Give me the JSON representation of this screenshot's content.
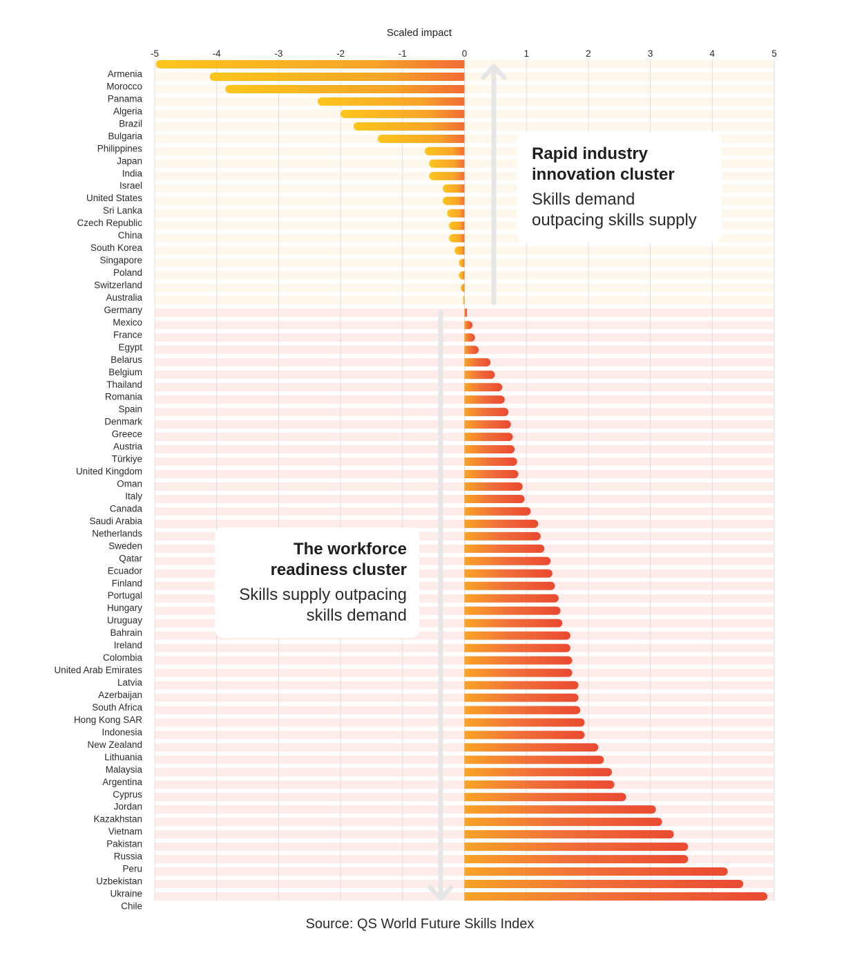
{
  "chart_data": {
    "type": "bar",
    "orientation": "horizontal",
    "title": "",
    "xlabel": "Scaled impact",
    "ylabel": "",
    "xlim": [
      -5,
      5
    ],
    "xticks": [
      -5,
      -4,
      -3,
      -2,
      -1,
      0,
      1,
      2,
      3,
      4,
      5
    ],
    "grid": true,
    "categories": [
      "Armenia",
      "Morocco",
      "Panama",
      "Algeria",
      "Brazil",
      "Bulgaria",
      "Philippines",
      "Japan",
      "India",
      "Israel",
      "United States",
      "Sri Lanka",
      "Czech Republic",
      "China",
      "South Korea",
      "Singapore",
      "Poland",
      "Switzerland",
      "Australia",
      "Germany",
      "Mexico",
      "France",
      "Egypt",
      "Belarus",
      "Belgium",
      "Thailand",
      "Romania",
      "Spain",
      "Denmark",
      "Greece",
      "Austria",
      "Türkiye",
      "United Kingdom",
      "Oman",
      "Italy",
      "Canada",
      "Saudi Arabia",
      "Netherlands",
      "Sweden",
      "Qatar",
      "Ecuador",
      "Finland",
      "Portugal",
      "Hungary",
      "Uruguay",
      "Bahrain",
      "Ireland",
      "Colombia",
      "United Arab Emirates",
      "Latvia",
      "Azerbaijan",
      "South Africa",
      "Hong Kong SAR",
      "Indonesia",
      "New Zealand",
      "Lithuania",
      "Malaysia",
      "Argentina",
      "Cyprus",
      "Jordan",
      "Kazakhstan",
      "Vietnam",
      "Pakistan",
      "Russia",
      "Peru",
      "Uzbekistan",
      "Ukraine",
      "Chile"
    ],
    "values": [
      -4.98,
      -4.11,
      -3.86,
      -2.37,
      -2.0,
      -1.79,
      -1.4,
      -0.64,
      -0.57,
      -0.57,
      -0.35,
      -0.35,
      -0.28,
      -0.25,
      -0.25,
      -0.16,
      -0.09,
      -0.09,
      -0.06,
      -0.02,
      0.04,
      0.13,
      0.17,
      0.23,
      0.42,
      0.49,
      0.61,
      0.65,
      0.71,
      0.75,
      0.78,
      0.81,
      0.85,
      0.87,
      0.94,
      0.97,
      1.07,
      1.19,
      1.23,
      1.29,
      1.39,
      1.42,
      1.46,
      1.52,
      1.55,
      1.58,
      1.71,
      1.71,
      1.74,
      1.74,
      1.84,
      1.84,
      1.87,
      1.94,
      1.94,
      2.16,
      2.25,
      2.38,
      2.42,
      2.61,
      3.09,
      3.19,
      3.38,
      3.61,
      3.61,
      4.25,
      4.5,
      4.89
    ],
    "colors": {
      "negative_gradient": [
        "#fdc51c",
        "#f7a428",
        "#f26c35"
      ],
      "positive_gradient": [
        "#f9a326",
        "#f0693a",
        "#ea4a31"
      ],
      "band_top": "#fef8ec",
      "band_bottom": "#fdecea",
      "gridline": "#dedede",
      "arrow": "#e6e6e6"
    },
    "annotations": [
      {
        "title": "Rapid industry innovation cluster",
        "text": "Skills demand outpacing skills supply",
        "direction": "up"
      },
      {
        "title": "The workforce readiness cluster",
        "text": "Skills supply outpacing skills demand",
        "direction": "down"
      }
    ],
    "source": "Source: QS World Future Skills Index"
  },
  "notes": {
    "top": {
      "title_line1": "Rapid industry",
      "title_line2": "innovation cluster",
      "sub_line1": "Skills demand",
      "sub_line2": "outpacing skills supply"
    },
    "bottom": {
      "title_line1": "The workforce",
      "title_line2": "readiness cluster",
      "sub_line1": "Skills supply outpacing",
      "sub_line2": "skills demand"
    }
  },
  "source": "Source: QS World Future Skills Index"
}
